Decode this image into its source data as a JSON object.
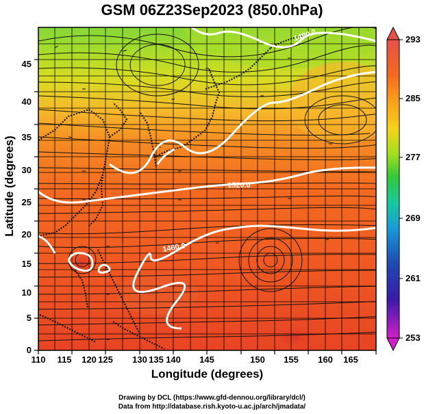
{
  "title": "GSM 06Z23Sep2023 (850.0hPa)",
  "x_axis": {
    "label": "Longitude (degrees)",
    "ticks": [
      "110",
      "115",
      "120",
      "125",
      "130",
      "135",
      "140",
      "145",
      "150",
      "155",
      "160",
      "165"
    ]
  },
  "y_axis": {
    "label": "Latitude  (degrees)",
    "ticks": [
      "0",
      "5",
      "10",
      "15",
      "20",
      "25",
      "30",
      "35",
      "40",
      "45"
    ]
  },
  "colorbar": {
    "ticks": [
      "293",
      "285",
      "277",
      "269",
      "261",
      "253"
    ],
    "colors": [
      "#e8504a",
      "#f36a1f",
      "#fba81a",
      "#f6d21c",
      "#a6e01c",
      "#33c83a",
      "#18c8a0",
      "#1a9bd8",
      "#1f4ab0",
      "#3a1aa8",
      "#d020c8"
    ]
  },
  "contours": [
    {
      "label": "1480.0"
    },
    {
      "label": "1520.0"
    },
    {
      "label": "1460.0"
    }
  ],
  "credits": [
    "Drawing by DCL (https://www.gfd-dennou.org/library/dcl/)",
    "Data from http://database.rish.kyoto-u.ac.jp/arch/jmadata/"
  ],
  "chart_data": {
    "type": "heatmap",
    "title": "GSM 06Z23Sep2023 (850.0hPa)",
    "xlabel": "Longitude (degrees)",
    "ylabel": "Latitude  (degrees)",
    "xlim": [
      110,
      170
    ],
    "ylim": [
      0,
      50
    ],
    "colorbar_range": [
      253,
      293
    ],
    "contour_labels": [
      "1480.0",
      "1520.0",
      "1460.0"
    ],
    "grid": true
  }
}
